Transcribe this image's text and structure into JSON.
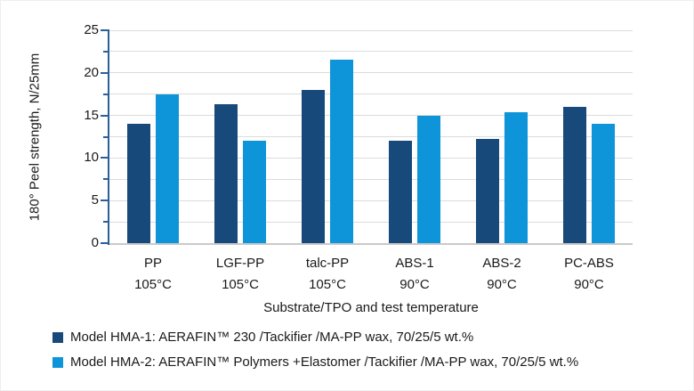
{
  "chart_data": {
    "type": "bar",
    "title": "",
    "categories": [
      "PP",
      "LGF-PP",
      "talc-PP",
      "ABS-1",
      "ABS-2",
      "PC-ABS"
    ],
    "category_temperatures": [
      "105°C",
      "105°C",
      "105°C",
      "90°C",
      "90°C",
      "90°C"
    ],
    "series": [
      {
        "name": "Model HMA-1: AERAFIN™ 230 /Tackifier /MA-PP wax, 70/25/5 wt.%",
        "color": "#17497B",
        "values": [
          14.0,
          16.3,
          18.0,
          12.0,
          12.2,
          16.0
        ]
      },
      {
        "name": "Model HMA-2: AERAFIN™ Polymers +Elastomer /Tackifier /MA-PP wax, 70/25/5 wt.%",
        "color": "#0E94D8",
        "values": [
          17.5,
          12.0,
          21.5,
          15.0,
          15.4,
          14.0
        ]
      }
    ],
    "xlabel": "Substrate/TPO and test temperature",
    "ylabel": "180° Peel strength, N/25mm",
    "ylim": [
      0,
      25
    ],
    "ytick_step": 5,
    "gridline_step": 2.5,
    "ytick_labels": [
      "0",
      "5",
      "10",
      "15",
      "20",
      "25"
    ],
    "grid": true,
    "legend_position": "bottom",
    "style": {
      "axis_color": "#2a6099",
      "gridline_color": "#dcdcdc",
      "baseline_color": "#c9c9c9",
      "text_color": "#1a1a1a",
      "background": "#ffffff"
    }
  }
}
